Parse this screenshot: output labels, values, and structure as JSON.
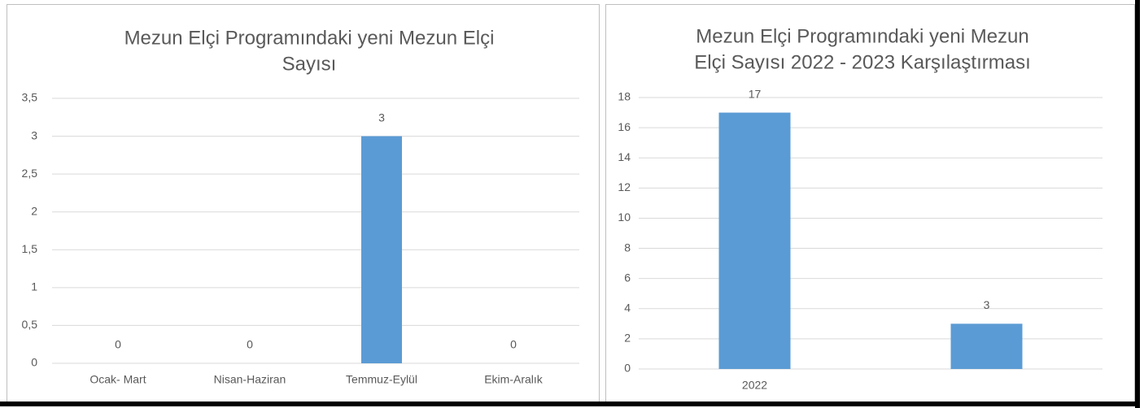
{
  "chart_data": [
    {
      "type": "bar",
      "title": [
        "Mezun Elçi Programındaki yeni Mezun Elçi",
        "Sayısı"
      ],
      "categories": [
        "Ocak- Mart",
        "Nisan-Haziran",
        "Temmuz-Eylül",
        "Ekim-Aralık"
      ],
      "values": [
        0,
        0,
        3,
        0
      ],
      "color": "#5b9bd5",
      "ylim": [
        0,
        3.5
      ],
      "yticks": [
        0,
        {
          "value": 0.5,
          "label": "0,5"
        },
        1,
        {
          "value": 1.5,
          "label": "1,5"
        },
        2,
        {
          "value": 2.5,
          "label": "2,5"
        },
        3,
        {
          "value": 3.5,
          "label": "3,5"
        }
      ],
      "grid": true
    },
    {
      "type": "bar",
      "title": [
        "Mezun Elçi Programındaki yeni Mezun",
        "Elçi Sayısı 2022 - 2023 Karşılaştırması"
      ],
      "categories": [
        "2022",
        null
      ],
      "values": [
        17,
        3
      ],
      "color": "#5b9bd5",
      "ylim": [
        0,
        18
      ],
      "yticks": [
        0,
        2,
        4,
        6,
        8,
        10,
        12,
        14,
        16,
        18
      ],
      "grid": true
    }
  ]
}
